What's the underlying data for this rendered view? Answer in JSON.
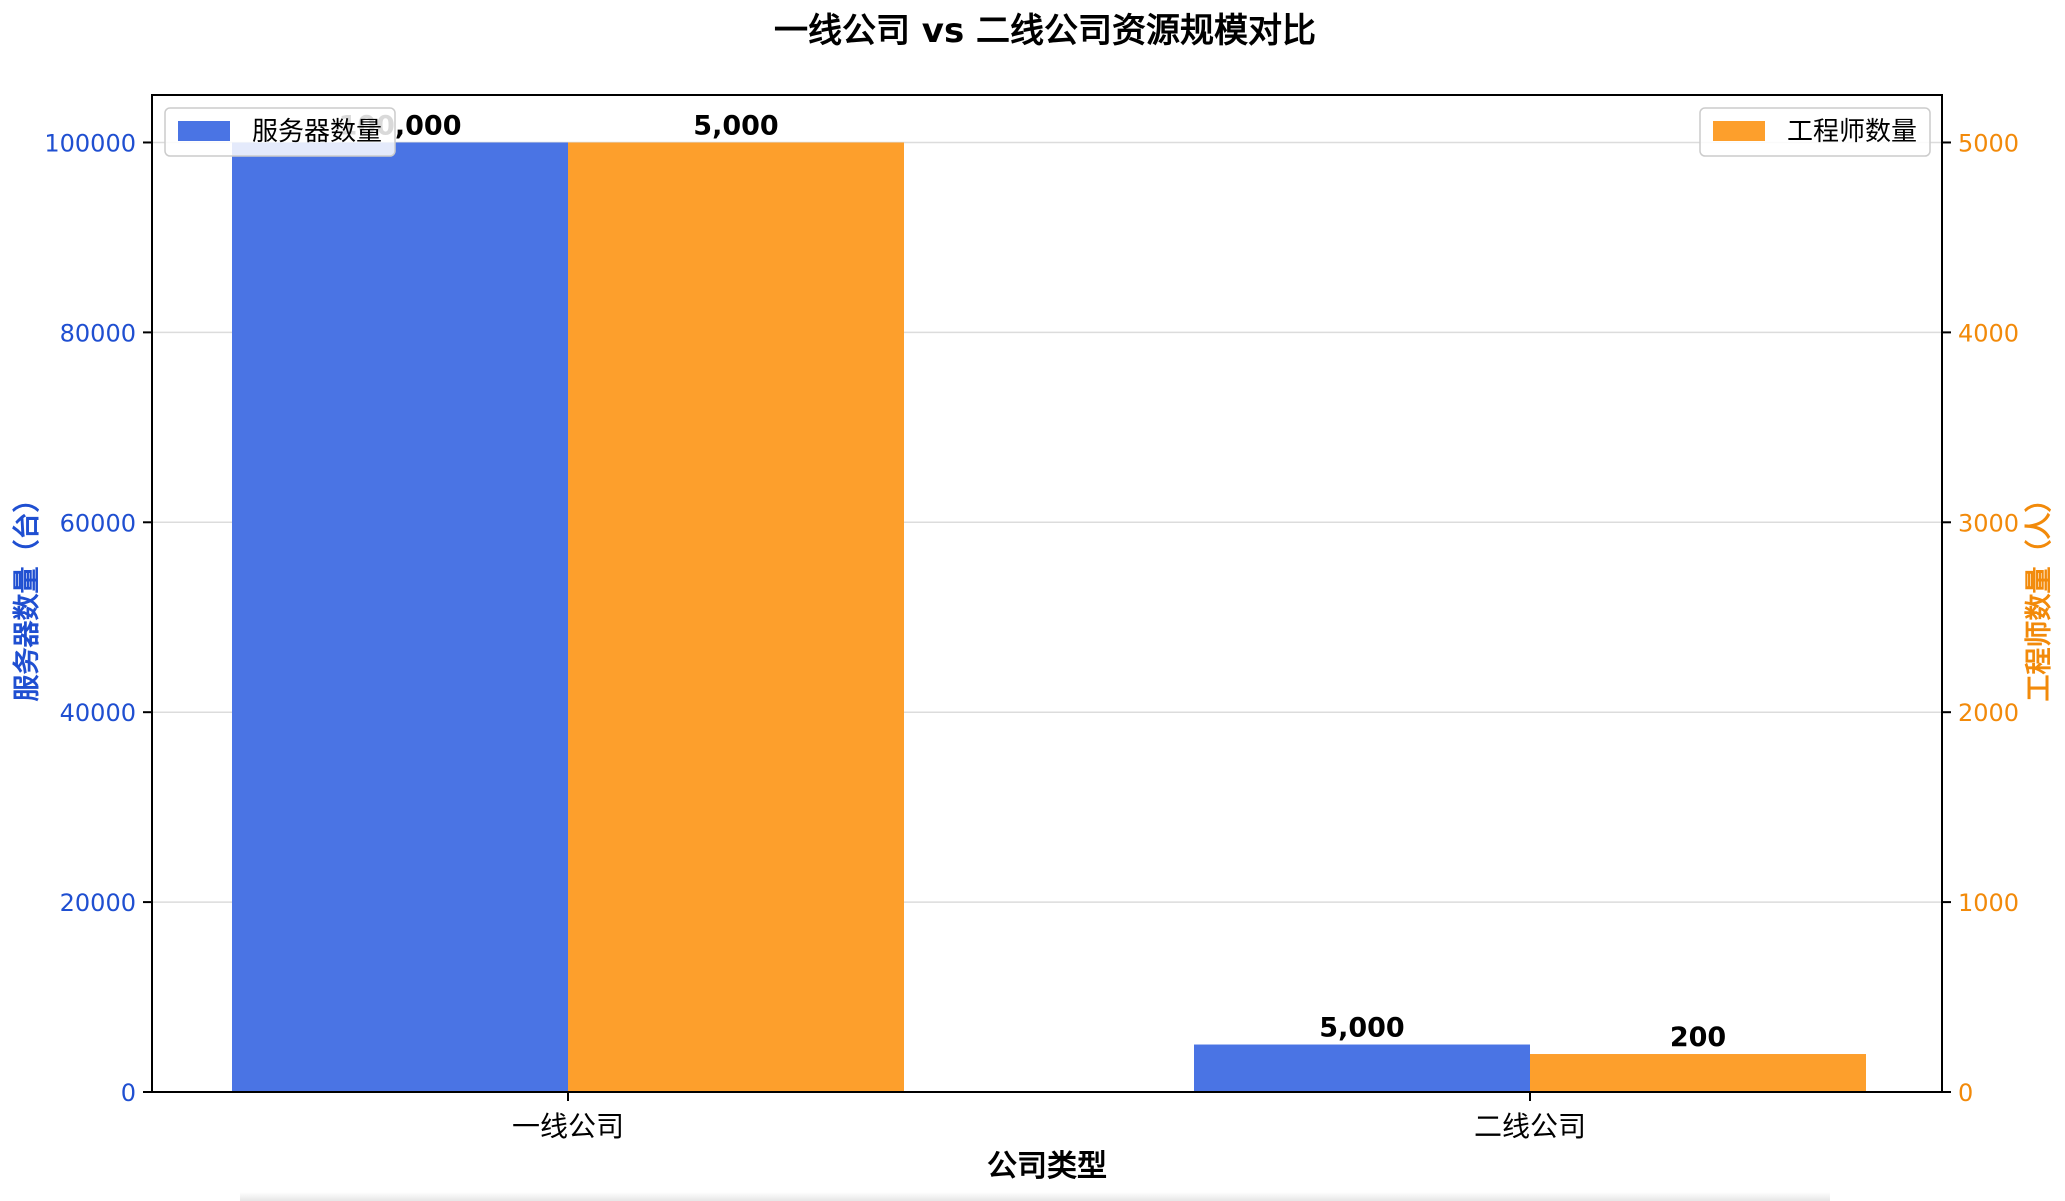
{
  "chart_data": {
    "type": "bar",
    "title": "一线公司 vs 二线公司资源规模对比",
    "xlabel": "公司类型",
    "categories": [
      "一线公司",
      "二线公司"
    ],
    "y_left": {
      "label": "服务器数量（台）",
      "lim": [
        0,
        105000
      ],
      "ticks": [
        0,
        20000,
        40000,
        60000,
        80000,
        100000
      ],
      "tick_labels": [
        "0",
        "20000",
        "40000",
        "60000",
        "80000",
        "100000"
      ],
      "color": "#1f4fd1"
    },
    "y_right": {
      "label": "工程师数量（人）",
      "lim": [
        0,
        5250
      ],
      "ticks": [
        0,
        1000,
        2000,
        3000,
        4000,
        5000
      ],
      "tick_labels": [
        "0",
        "1000",
        "2000",
        "3000",
        "4000",
        "5000"
      ],
      "color": "#f28a0a"
    },
    "series": [
      {
        "name": "服务器数量",
        "axis": "left",
        "color": "#4a74e4",
        "values": [
          100000,
          5000
        ],
        "labels": [
          "100,000",
          "5,000"
        ]
      },
      {
        "name": "工程师数量",
        "axis": "right",
        "color": "#fd9f2c",
        "values": [
          5000,
          200
        ],
        "labels": [
          "5,000",
          "200"
        ]
      }
    ],
    "legend": {
      "left_position": "upper-left",
      "right_position": "upper-right"
    },
    "grid": {
      "horizontal": true,
      "color": "#dcdcdc"
    }
  }
}
